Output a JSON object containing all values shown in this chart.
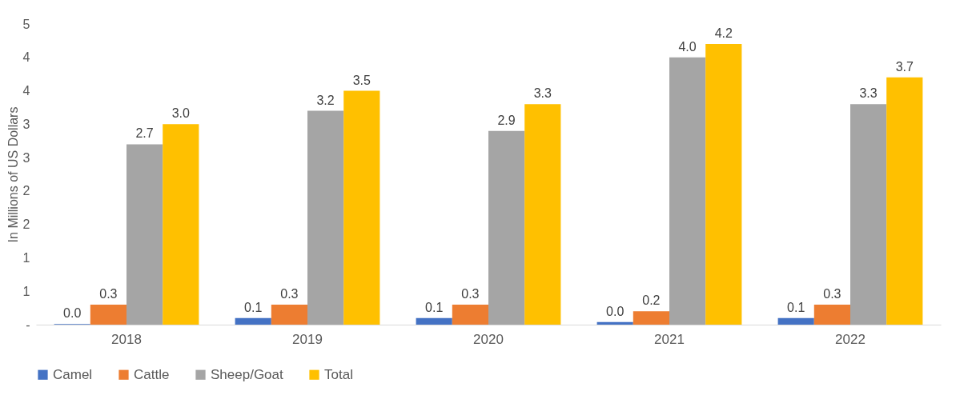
{
  "chart_data": {
    "type": "bar",
    "ylabel": "In Millions of US Dollars",
    "categories": [
      "2018",
      "2019",
      "2020",
      "2021",
      "2022"
    ],
    "series": [
      {
        "name": "Camel",
        "color": "#4472c4",
        "values": [
          0.01,
          0.1,
          0.1,
          0.04,
          0.1
        ],
        "value_labels": [
          "0.0",
          "0.1",
          "0.1",
          "0.0",
          "0.1"
        ]
      },
      {
        "name": "Cattle",
        "color": "#ed7d31",
        "values": [
          0.3,
          0.3,
          0.3,
          0.2,
          0.3
        ],
        "value_labels": [
          "0.3",
          "0.3",
          "0.3",
          "0.2",
          "0.3"
        ]
      },
      {
        "name": "Sheep/Goat",
        "color": "#a5a5a5",
        "values": [
          2.7,
          3.2,
          2.9,
          4.0,
          3.3
        ],
        "value_labels": [
          "2.7",
          "3.2",
          "2.9",
          "4.0",
          "3.3"
        ]
      },
      {
        "name": "Total",
        "color": "#ffc000",
        "values": [
          3.0,
          3.5,
          3.3,
          4.2,
          3.7
        ],
        "value_labels": [
          "3.0",
          "3.5",
          "3.3",
          "4.2",
          "3.7"
        ]
      }
    ],
    "ylim": [
      0,
      4.5
    ],
    "yticks": [
      {
        "value": 0,
        "label": "-"
      },
      {
        "value": 0.5,
        "label": "1"
      },
      {
        "value": 1,
        "label": "1"
      },
      {
        "value": 1.5,
        "label": "2"
      },
      {
        "value": 2,
        "label": "2"
      },
      {
        "value": 2.5,
        "label": "3"
      },
      {
        "value": 3,
        "label": "3"
      },
      {
        "value": 3.5,
        "label": "4"
      },
      {
        "value": 4,
        "label": "4"
      },
      {
        "value": 4.5,
        "label": "5"
      }
    ],
    "grid": false,
    "legend": "bottom"
  }
}
